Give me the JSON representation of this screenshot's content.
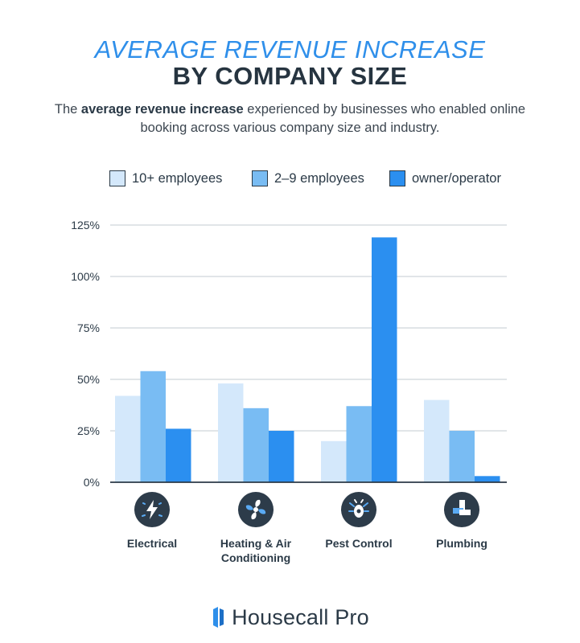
{
  "header": {
    "title_line1": "AVERAGE REVENUE INCREASE",
    "title_line2": "BY COMPANY SIZE",
    "subtitle_pre": "The ",
    "subtitle_bold": "average revenue increase",
    "subtitle_post": " experienced by businesses who enabled online booking across various company size and industry."
  },
  "colors": {
    "series_10plus": "#d4e8fb",
    "series_2to9": "#79bcf3",
    "series_owner": "#2b8ff0",
    "grid": "#cfd5db",
    "axis": "#2b3a47"
  },
  "chart_data": {
    "type": "bar",
    "categories": [
      "Electrical",
      "Heating & Air Conditioning",
      "Pest Control",
      "Plumbing"
    ],
    "category_label_lines": [
      [
        "Electrical"
      ],
      [
        "Heating & Air",
        "Conditioning"
      ],
      [
        "Pest Control"
      ],
      [
        "Plumbing"
      ]
    ],
    "category_icons": [
      "lightning-icon",
      "fan-icon",
      "bug-icon",
      "pipe-icon"
    ],
    "series": [
      {
        "name": "10+ employees",
        "values": [
          42,
          48,
          20,
          40
        ]
      },
      {
        "name": "2–9 employees",
        "values": [
          54,
          36,
          37,
          25
        ]
      },
      {
        "name": "owner/operator",
        "values": [
          26,
          25,
          119,
          3
        ]
      }
    ],
    "ylim": [
      0,
      125
    ],
    "yticks": [
      0,
      25,
      50,
      75,
      100,
      125
    ],
    "ytick_labels": [
      "0%",
      "25%",
      "50%",
      "75%",
      "100%",
      "125%"
    ],
    "legend_position": "top",
    "grid": true
  },
  "brand": {
    "name": "Housecall Pro"
  }
}
